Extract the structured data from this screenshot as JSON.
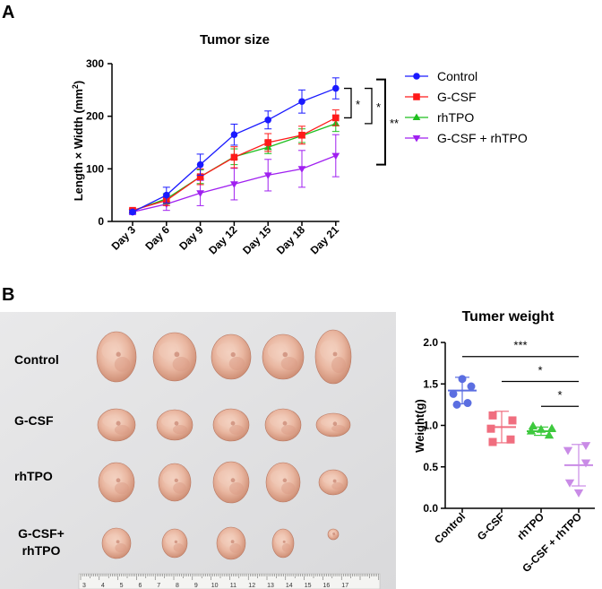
{
  "panels": {
    "a_label": "A",
    "b_label": "B"
  },
  "chart_data": [
    {
      "type": "line",
      "title": "Tumor size",
      "xlabel": "",
      "ylabel": "Length × Width (mm",
      "ylabel_sup": "2",
      "ylabel_close": ")",
      "categories": [
        "Day 3",
        "Day 6",
        "Day 9",
        "Day 12",
        "Day 15",
        "Day 18",
        "Day 21"
      ],
      "ylim": [
        0,
        300
      ],
      "yticks": [
        "0",
        "100",
        "200",
        "300"
      ],
      "legend_position": "right",
      "series": [
        {
          "name": "Control",
          "color": "#1a1aff",
          "marker": "circle",
          "values": [
            18,
            50,
            108,
            165,
            193,
            228,
            253
          ],
          "errors": [
            3,
            15,
            20,
            20,
            17,
            22,
            20
          ]
        },
        {
          "name": "G-CSF",
          "color": "#ff1a1a",
          "marker": "square",
          "values": [
            21,
            40,
            85,
            122,
            150,
            164,
            197
          ],
          "errors": [
            3,
            10,
            15,
            20,
            17,
            17,
            15
          ]
        },
        {
          "name": "rhTPO",
          "color": "#1fbf1f",
          "marker": "triangle",
          "values": [
            20,
            43,
            85,
            123,
            141,
            163,
            186
          ],
          "errors": [
            3,
            10,
            13,
            15,
            12,
            13,
            15
          ]
        },
        {
          "name": "G-CSF + rhTPO",
          "color": "#a020f0",
          "marker": "triangle-down",
          "values": [
            18,
            33,
            54,
            71,
            88,
            100,
            125
          ],
          "errors": [
            5,
            12,
            24,
            30,
            30,
            35,
            40
          ]
        }
      ],
      "significance": [
        {
          "label": "*",
          "from": 253,
          "to": 197
        },
        {
          "label": "*",
          "from": 253,
          "to": 186
        },
        {
          "label": "**",
          "from": 253,
          "to": 125
        }
      ]
    },
    {
      "type": "scatter",
      "title": "Tumer weight",
      "ylabel": "Weight(g)",
      "categories": [
        "Control",
        "G-CSF",
        "rhTPO",
        "G-CSF + rhTPO"
      ],
      "ylim": [
        0,
        2.0
      ],
      "yticks": [
        "0.0",
        "0.5",
        "1.0",
        "1.5",
        "2.0"
      ],
      "groups": [
        {
          "name": "Control",
          "color": "#5b6ee1",
          "marker": "circle",
          "points": [
            1.56,
            1.47,
            1.38,
            1.27,
            1.25
          ],
          "mean": 1.42,
          "sd": 0.16
        },
        {
          "name": "G-CSF",
          "color": "#f06e7f",
          "marker": "square",
          "points": [
            1.12,
            1.06,
            0.96,
            0.83,
            0.8
          ],
          "mean": 0.98,
          "sd": 0.19
        },
        {
          "name": "rhTPO",
          "color": "#3ec93e",
          "marker": "triangle",
          "points": [
            0.99,
            0.96,
            0.95,
            0.93,
            0.88
          ],
          "mean": 0.93,
          "sd": 0.05
        },
        {
          "name": "G-CSF + rhTPO",
          "color": "#c98be6",
          "marker": "triangle-down",
          "points": [
            0.76,
            0.7,
            0.55,
            0.31,
            0.19
          ],
          "mean": 0.52,
          "sd": 0.25
        }
      ],
      "significance": [
        {
          "label": "***",
          "from_group": 0,
          "to_group": 3,
          "y": 1.83
        },
        {
          "label": "*",
          "from_group": 1,
          "to_group": 3,
          "y": 1.53
        },
        {
          "label": "*",
          "from_group": 2,
          "to_group": 3,
          "y": 1.23
        }
      ]
    }
  ],
  "photo": {
    "rows": [
      {
        "label": "Control",
        "count": 5
      },
      {
        "label": "G-CSF",
        "count": 5
      },
      {
        "label": "rhTPO",
        "count": 5
      },
      {
        "label": "G-CSF+",
        "label2": "rhTPO",
        "count": 5
      }
    ],
    "ruler_numbers": [
      "3",
      "4",
      "5",
      "6",
      "7",
      "8",
      "9",
      "10",
      "11",
      "12",
      "13",
      "14",
      "15",
      "16",
      "17"
    ]
  }
}
